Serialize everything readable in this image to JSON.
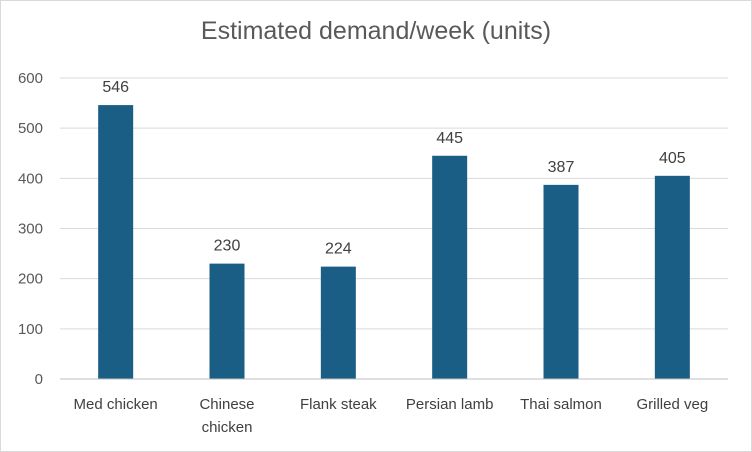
{
  "chart_data": {
    "type": "bar",
    "title": "Estimated demand/week (units)",
    "categories": [
      "Med chicken",
      "Chinese chicken",
      "Flank steak",
      "Persian lamb",
      "Thai salmon",
      "Grilled veg"
    ],
    "category_lines": [
      [
        "Med chicken"
      ],
      [
        "Chinese",
        "chicken"
      ],
      [
        "Flank steak"
      ],
      [
        "Persian lamb"
      ],
      [
        "Thai salmon"
      ],
      [
        "Grilled veg"
      ]
    ],
    "values": [
      546,
      230,
      224,
      445,
      387,
      405
    ],
    "ylim": [
      0,
      600
    ],
    "yticks": [
      0,
      100,
      200,
      300,
      400,
      500,
      600
    ],
    "grid": true,
    "data_labels": true,
    "bar_color": "#1a5e86",
    "grid_color": "#d9d9d9"
  }
}
